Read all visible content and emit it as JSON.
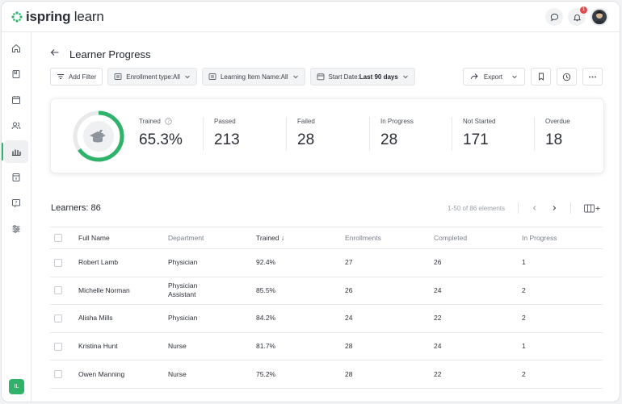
{
  "brand": {
    "name_bold": "ispring",
    "name_light": " learn",
    "accent": "#2fb36b"
  },
  "topbar": {
    "notification_count": "1"
  },
  "sidebar": {
    "items": [
      "home-icon",
      "book-icon",
      "calendar-icon",
      "users-icon",
      "reports-icon",
      "catalog-icon",
      "help-icon",
      "settings-icon"
    ],
    "user_initials": "IL"
  },
  "page": {
    "title": "Learner Progress"
  },
  "filters": {
    "add_filter": "Add Filter",
    "enrollment_label": "Enrollment type: ",
    "enrollment_value": "All",
    "item_label": "Learning Item Name: ",
    "item_value": "All",
    "date_label": "Start Date: ",
    "date_value": "Last 90 days",
    "export": "Export"
  },
  "stats": {
    "trained_pct": 65.3,
    "trained_label": "Trained",
    "trained_value": "65.3%",
    "passed_label": "Passed",
    "passed_value": "213",
    "failed_label": "Failed",
    "failed_value": "28",
    "inprogress_label": "In Progress",
    "inprogress_value": "28",
    "notstarted_label": "Not Started",
    "notstarted_value": "171",
    "overdue_label": "Overdue",
    "overdue_value": "18"
  },
  "learners": {
    "title": "Learners: 86",
    "range": "1-50 of 86 elements"
  },
  "table": {
    "headers": [
      "Full Name",
      "Department",
      "Trained ↓",
      "Enrollments",
      "Completed",
      "In Progress"
    ],
    "rows": [
      [
        "Robert Lamb",
        "Physician",
        "92.4%",
        "27",
        "26",
        "1"
      ],
      [
        "Michelle Norman",
        "Physician Assistant",
        "85.5%",
        "26",
        "24",
        "2"
      ],
      [
        "Alisha Mills",
        "Physician",
        "84.2%",
        "24",
        "22",
        "2"
      ],
      [
        "Kristina Hunt",
        "Nurse",
        "81.7%",
        "28",
        "24",
        "1"
      ],
      [
        "Owen Manning",
        "Nurse",
        "75.2%",
        "28",
        "22",
        "2"
      ]
    ]
  }
}
